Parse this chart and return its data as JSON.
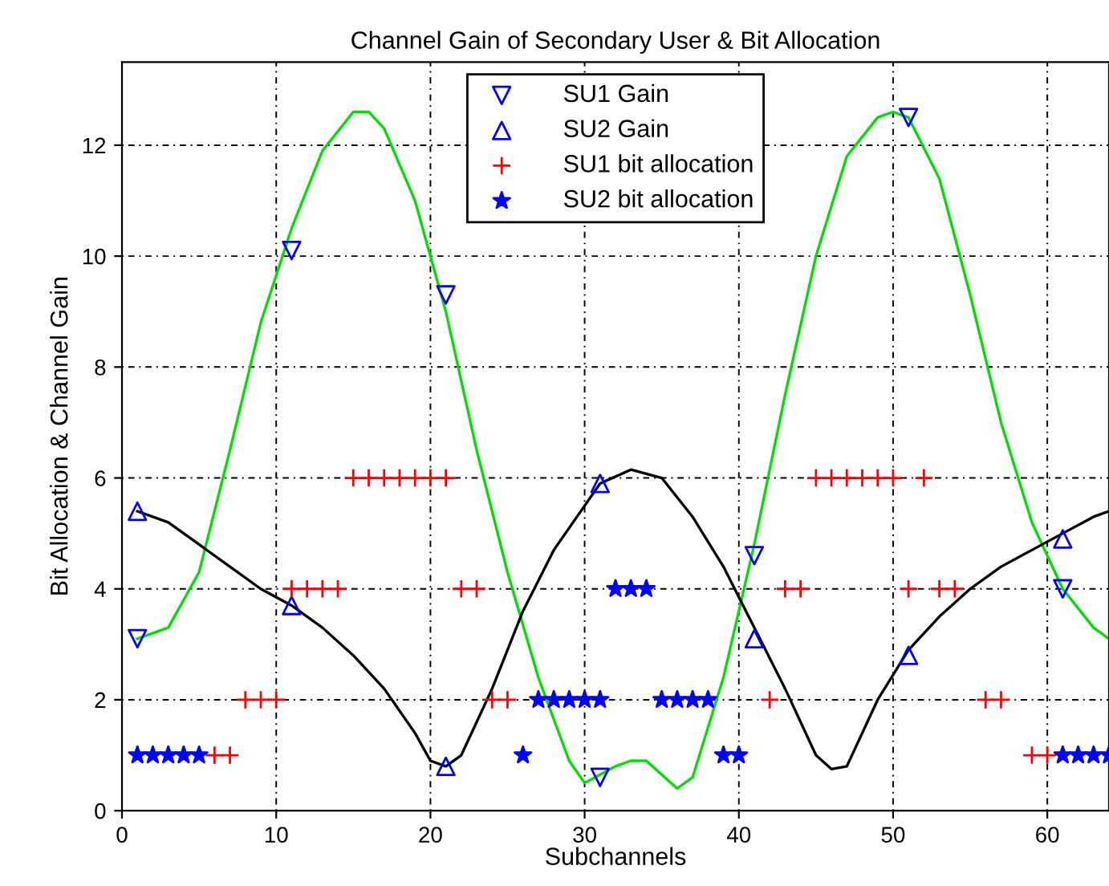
{
  "chart_data": {
    "type": "scatter",
    "title": "Channel Gain of Secondary User & Bit Allocation",
    "xlabel": "Subchannels",
    "ylabel": "Bit Allocation & Channel Gain",
    "xlim": [
      0,
      64
    ],
    "ylim": [
      0,
      13.5
    ],
    "xticks": [
      0,
      10,
      20,
      30,
      40,
      50,
      60
    ],
    "yticks": [
      0,
      2,
      4,
      6,
      8,
      10,
      12
    ],
    "grid": true,
    "legend": "top",
    "series": [
      {
        "type": "line",
        "color": "#00e000",
        "marker": "none",
        "x": [
          1,
          3,
          5,
          7,
          9,
          11,
          13,
          15,
          16,
          17,
          19,
          21,
          23,
          25,
          27,
          29,
          30,
          32,
          33,
          34,
          36,
          37,
          39,
          41,
          43,
          45,
          47,
          49,
          50,
          51,
          53,
          55,
          57,
          59,
          61,
          63,
          64
        ],
        "values": [
          3.1,
          3.3,
          4.3,
          6.5,
          8.8,
          10.5,
          11.9,
          12.6,
          12.6,
          12.3,
          11.0,
          9.0,
          6.5,
          4.3,
          2.4,
          0.9,
          0.5,
          0.8,
          0.9,
          0.9,
          0.4,
          0.6,
          2.4,
          4.8,
          7.5,
          10.0,
          11.8,
          12.5,
          12.6,
          12.5,
          11.4,
          9.3,
          7.0,
          5.2,
          4.0,
          3.3,
          3.1
        ]
      },
      {
        "type": "line",
        "color": "#000000",
        "marker": "none",
        "x": [
          1,
          3,
          5,
          7,
          9,
          11,
          13,
          15,
          17,
          19,
          20,
          21,
          22,
          24,
          26,
          28,
          30,
          31,
          33,
          35,
          37,
          39,
          41,
          43,
          45,
          46,
          47,
          49,
          51,
          53,
          55,
          57,
          59,
          61,
          63,
          64
        ],
        "values": [
          5.4,
          5.2,
          4.8,
          4.4,
          4.0,
          3.7,
          3.3,
          2.8,
          2.2,
          1.4,
          0.9,
          0.8,
          1.0,
          2.2,
          3.6,
          4.7,
          5.5,
          5.9,
          6.15,
          6.0,
          5.3,
          4.4,
          3.3,
          2.2,
          1.0,
          0.75,
          0.8,
          2.0,
          2.9,
          3.5,
          4.0,
          4.4,
          4.7,
          5.0,
          5.3,
          5.4
        ]
      },
      {
        "name": "SU1 Gain",
        "color": "#0000ff",
        "marker": "triangle_down",
        "x": [
          1,
          11,
          21,
          31,
          41,
          51,
          61
        ],
        "values": [
          3.1,
          10.1,
          9.3,
          0.6,
          4.6,
          12.5,
          4.0
        ]
      },
      {
        "name": "SU2 Gain",
        "color": "#0000ff",
        "marker": "triangle",
        "x": [
          1,
          11,
          21,
          31,
          41,
          51,
          61
        ],
        "values": [
          5.4,
          3.7,
          0.8,
          5.9,
          3.1,
          2.8,
          4.9
        ]
      },
      {
        "name": "SU1 bit allocation",
        "color": "#ff0000",
        "marker": "plus",
        "x": [
          15,
          16,
          17,
          18,
          19,
          20,
          21,
          45,
          46,
          47,
          48,
          49,
          50,
          52,
          11,
          12,
          13,
          14,
          22,
          23,
          43,
          44,
          51,
          53,
          54,
          8,
          9,
          10,
          24,
          25,
          42,
          56,
          57,
          6,
          7,
          59,
          60
        ],
        "values": [
          6,
          6,
          6,
          6,
          6,
          6,
          6,
          6,
          6,
          6,
          6,
          6,
          6,
          6,
          4,
          4,
          4,
          4,
          4,
          4,
          4,
          4,
          4,
          4,
          4,
          2,
          2,
          2,
          2,
          2,
          2,
          2,
          2,
          1,
          1,
          1,
          1
        ]
      },
      {
        "name": "SU2 bit allocation",
        "color": "#0000ff",
        "marker": "star",
        "x": [
          32,
          33,
          34,
          27,
          28,
          29,
          30,
          31,
          35,
          36,
          37,
          38,
          1,
          2,
          3,
          4,
          5,
          26,
          39,
          40,
          61,
          62,
          63,
          64
        ],
        "values": [
          4,
          4,
          4,
          2,
          2,
          2,
          2,
          2,
          2,
          2,
          2,
          2,
          1,
          1,
          1,
          1,
          1,
          1,
          1,
          1,
          1,
          1,
          1,
          1
        ]
      }
    ]
  }
}
